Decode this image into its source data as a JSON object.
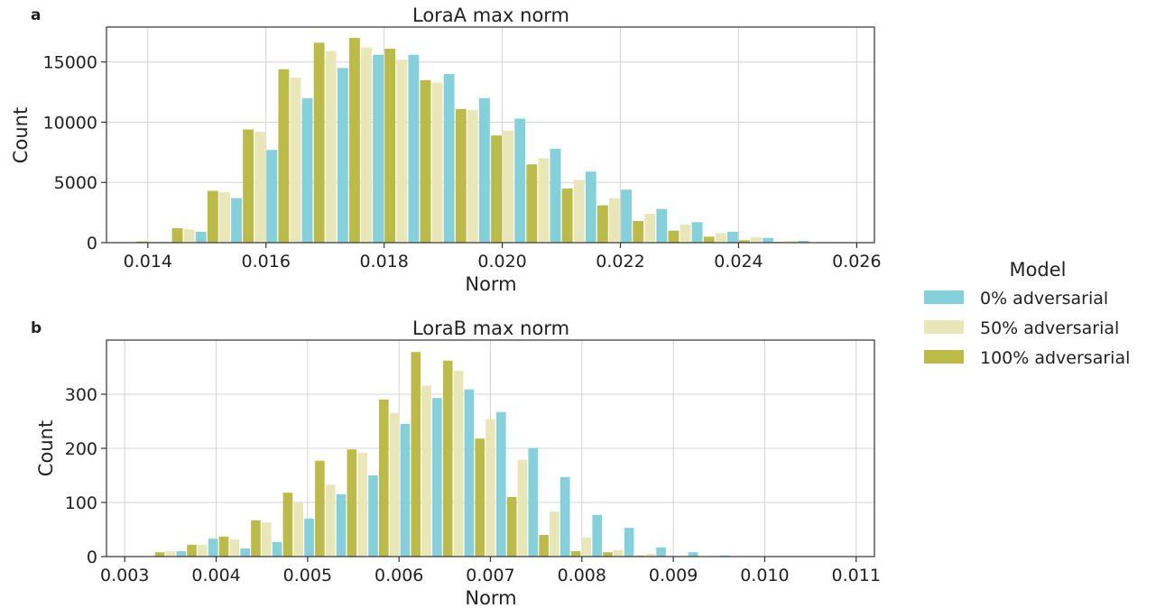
{
  "panels": [
    {
      "label": "a"
    },
    {
      "label": "b"
    }
  ],
  "legend": {
    "title": "Model",
    "entries": [
      {
        "name": "0% adversarial",
        "color": "#84d1dc"
      },
      {
        "name": "50% adversarial",
        "color": "#e9e7b8"
      },
      {
        "name": "100% adversarial",
        "color": "#bdbb48"
      }
    ]
  },
  "chart_data": [
    {
      "type": "bar",
      "title": "LoraA max norm",
      "xlabel": "Norm",
      "ylabel": "Count",
      "xlim": [
        0.0133,
        0.0263
      ],
      "ylim": [
        0,
        17900
      ],
      "xticks": [
        0.014,
        0.016,
        0.018,
        0.02,
        0.022,
        0.024,
        0.026
      ],
      "xtick_labels": [
        "0.014",
        "0.016",
        "0.018",
        "0.020",
        "0.022",
        "0.024",
        "0.026"
      ],
      "yticks": [
        0,
        5000,
        10000,
        15000
      ],
      "ytick_labels": [
        "0",
        "5000",
        "10000",
        "15000"
      ],
      "grid": true,
      "bin_width": 0.0006,
      "x": [
        0.0141,
        0.0147,
        0.0153,
        0.0159,
        0.0165,
        0.0171,
        0.0177,
        0.0183,
        0.0189,
        0.0195,
        0.0201,
        0.0207,
        0.0213,
        0.0219,
        0.0225,
        0.0231,
        0.0237,
        0.0243,
        0.0249,
        0.0255
      ],
      "series": [
        {
          "name": "100% adversarial",
          "values": [
            100,
            1200,
            4300,
            9400,
            14400,
            16600,
            17000,
            16100,
            13500,
            11100,
            8900,
            6500,
            4500,
            3100,
            1800,
            1000,
            500,
            200,
            60,
            20
          ]
        },
        {
          "name": "50% adversarial",
          "values": [
            80,
            1100,
            4200,
            9200,
            13700,
            15900,
            16200,
            15200,
            13300,
            11000,
            9300,
            7000,
            5200,
            3700,
            2400,
            1500,
            800,
            450,
            150,
            50
          ]
        },
        {
          "name": "0% adversarial",
          "values": [
            60,
            900,
            3700,
            7700,
            12000,
            14500,
            15600,
            15600,
            14000,
            12000,
            10300,
            7800,
            5900,
            4400,
            2800,
            1700,
            900,
            400,
            150,
            50
          ]
        }
      ]
    },
    {
      "type": "bar",
      "title": "LoraB max norm",
      "xlabel": "Norm",
      "ylabel": "Count",
      "xlim": [
        0.0028,
        0.0112
      ],
      "ylim": [
        0,
        400
      ],
      "xticks": [
        0.003,
        0.004,
        0.005,
        0.006,
        0.007,
        0.008,
        0.009,
        0.01,
        0.011
      ],
      "xtick_labels": [
        "0.003",
        "0.004",
        "0.005",
        "0.006",
        "0.007",
        "0.008",
        "0.009",
        "0.010",
        "0.011"
      ],
      "yticks": [
        0,
        100,
        200,
        300
      ],
      "ytick_labels": [
        "0",
        "100",
        "200",
        "300"
      ],
      "grid": true,
      "bin_width": 0.00035,
      "x": [
        0.0035,
        0.00385,
        0.0042,
        0.00455,
        0.0049,
        0.00525,
        0.0056,
        0.00595,
        0.0063,
        0.00665,
        0.007,
        0.00735,
        0.0077,
        0.00805,
        0.0084,
        0.00875,
        0.0091,
        0.00945,
        0.0098,
        0.01015
      ],
      "series": [
        {
          "name": "100% adversarial",
          "values": [
            8,
            22,
            37,
            67,
            118,
            177,
            198,
            290,
            378,
            362,
            218,
            110,
            40,
            10,
            8,
            2,
            1,
            0,
            0,
            0
          ]
        },
        {
          "name": "50% adversarial",
          "values": [
            10,
            22,
            32,
            63,
            99,
            133,
            192,
            265,
            316,
            343,
            254,
            179,
            83,
            35,
            12,
            5,
            2,
            1,
            0,
            0
          ]
        },
        {
          "name": "0% adversarial",
          "values": [
            10,
            33,
            15,
            27,
            70,
            115,
            150,
            245,
            293,
            309,
            267,
            201,
            147,
            77,
            53,
            17,
            8,
            2,
            0,
            0
          ]
        }
      ]
    }
  ]
}
